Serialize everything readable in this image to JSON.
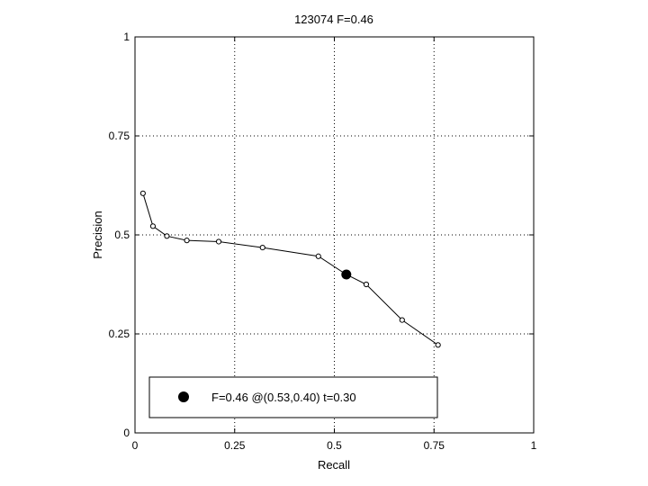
{
  "chart_data": {
    "type": "line",
    "title": "123074 F=0.46",
    "xlabel": "Recall",
    "ylabel": "Precision",
    "xlim": [
      0,
      1
    ],
    "ylim": [
      0,
      1
    ],
    "x_ticks": [
      "0",
      "0.25",
      "0.5",
      "0.75",
      "1"
    ],
    "y_ticks": [
      "0",
      "0.25",
      "0.5",
      "0.75",
      "1"
    ],
    "grid": true,
    "grid_style": "dotted",
    "legend_position": "bottom-left",
    "series": [
      {
        "x": [
          0.02,
          0.045,
          0.08,
          0.13,
          0.21,
          0.32,
          0.46,
          0.53,
          0.58,
          0.67,
          0.76
        ],
        "y": [
          0.605,
          0.522,
          0.497,
          0.486,
          0.483,
          0.468,
          0.446,
          0.4,
          0.375,
          0.285,
          0.222
        ]
      }
    ],
    "highlight": {
      "x": 0.53,
      "y": 0.4,
      "label": "F=0.46 @(0.53,0.40) t=0.30"
    },
    "colors": {
      "line": "#000000",
      "grid": "#000000",
      "background": "#ffffff"
    }
  }
}
